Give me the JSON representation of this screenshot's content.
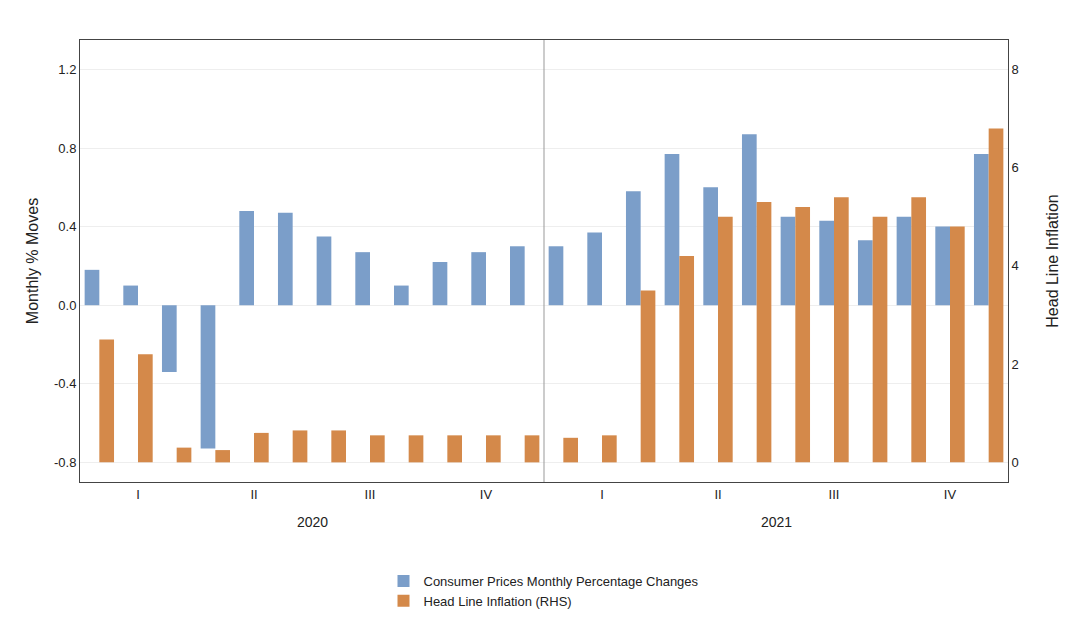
{
  "chart_data": {
    "type": "bar",
    "categories": [
      null,
      "I",
      null,
      null,
      "II",
      null,
      null,
      "III",
      null,
      null,
      "IV",
      null,
      null,
      "I",
      null,
      null,
      "II",
      null,
      null,
      "III",
      null,
      null,
      "IV",
      null
    ],
    "annotations": [
      "2020",
      "2021"
    ],
    "ylabel": "Monthly % Moves",
    "y2label": "Head Line Inflation",
    "series": [
      {
        "name": "Consumer Prices Monthly Percentage Changes",
        "color": "#7B9EC9",
        "values": [
          0.18,
          0.1,
          -0.34,
          -0.73,
          0.48,
          0.47,
          0.35,
          0.27,
          0.1,
          0.22,
          0.27,
          0.3,
          0.3,
          0.37,
          0.58,
          0.77,
          0.6,
          0.87,
          0.45,
          0.43,
          0.33,
          0.45,
          0.4,
          0.77
        ]
      },
      {
        "name": "Head Line Inflation (RHS)",
        "color": "#D4894A",
        "axis": "y2",
        "values": [
          2.5,
          2.2,
          0.3,
          0.25,
          0.6,
          0.65,
          0.65,
          0.55,
          0.55,
          0.55,
          0.55,
          0.55,
          0.5,
          0.55,
          3.5,
          4.2,
          5.0,
          5.3,
          5.2,
          5.4,
          5.0,
          5.4,
          4.8,
          6.8
        ]
      }
    ],
    "ylim": [
      -0.9,
      1.35
    ],
    "yticks": [
      -0.8,
      -0.4,
      {
        "value": 0.0,
        "label": "0.0"
      },
      0.4,
      0.8,
      1.2
    ],
    "y2lim": [
      -0.4,
      8.6
    ],
    "y2ticks": [
      0,
      2,
      4,
      6,
      8
    ],
    "grid": true,
    "legend": "bottom"
  }
}
